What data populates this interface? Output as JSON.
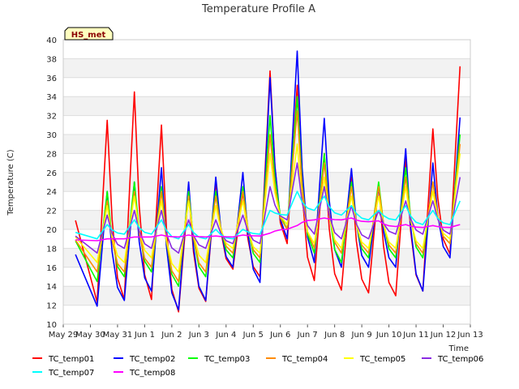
{
  "chart_data": {
    "type": "line",
    "title": "Temperature Profile A",
    "xlabel": "Time",
    "ylabel": "Temperature (C)",
    "site_badge": "HS_met",
    "ylim": [
      10,
      40
    ],
    "yticks": [
      10,
      12,
      14,
      16,
      18,
      20,
      22,
      24,
      26,
      28,
      30,
      32,
      34,
      36,
      38,
      40
    ],
    "xlim": [
      "2017-05-29",
      "2017-06-13"
    ],
    "xticks": [
      "May 29",
      "May 30",
      "May 31",
      "Jun 1",
      "Jun 2",
      "Jun 3",
      "Jun 4",
      "Jun 5",
      "Jun 6",
      "Jun 7",
      "Jun 8",
      "Jun 9",
      "Jun 10",
      "Jun 11",
      "Jun 12",
      "Jun 13"
    ],
    "grid": true,
    "legend_position": "bottom",
    "x": [
      "2017-05-30",
      "2017-05-31",
      "2017-06-01",
      "2017-06-02",
      "2017-06-03",
      "2017-06-04",
      "2017-06-05",
      "2017-06-06",
      "2017-06-07",
      "2017-06-08",
      "2017-06-09",
      "2017-06-10",
      "2017-06-11",
      "2017-06-12"
    ],
    "series": [
      {
        "name": "TC_temp01",
        "color": "#ff0000",
        "min": [
          12.3,
          12.6,
          12.6,
          11.3,
          12.4,
          15.8,
          15.0,
          18.5,
          14.6,
          13.6,
          13.3,
          13.0,
          13.5,
          17.4
        ],
        "max": [
          31.5,
          34.5,
          31.0,
          24.0,
          25.0,
          24.0,
          36.7,
          35.2,
          28.0,
          25.5,
          24.7,
          27.5,
          30.6,
          37.2
        ]
      },
      {
        "name": "TC_temp02",
        "color": "#0000ff",
        "min": [
          11.9,
          12.5,
          13.5,
          11.5,
          12.5,
          16.0,
          14.4,
          19.0,
          16.5,
          16.0,
          16.0,
          16.0,
          13.5,
          17.0
        ],
        "max": [
          24.0,
          25.0,
          26.5,
          25.0,
          25.5,
          26.0,
          36.0,
          38.8,
          31.7,
          26.4,
          24.5,
          28.5,
          27.0,
          31.8
        ]
      },
      {
        "name": "TC_temp03",
        "color": "#00ff00",
        "min": [
          14.5,
          15.0,
          15.5,
          14.0,
          15.0,
          17.0,
          16.5,
          20.0,
          17.5,
          16.5,
          17.0,
          17.0,
          17.0,
          18.5
        ],
        "max": [
          24.0,
          25.0,
          24.5,
          24.0,
          24.0,
          24.5,
          32.0,
          34.0,
          28.0,
          25.0,
          25.0,
          26.5,
          25.0,
          30.0
        ]
      },
      {
        "name": "TC_temp04",
        "color": "#ff8c00",
        "min": [
          15.5,
          15.5,
          16.0,
          14.5,
          15.5,
          17.5,
          17.0,
          20.0,
          18.0,
          17.5,
          17.5,
          17.5,
          17.5,
          18.5
        ],
        "max": [
          23.0,
          24.0,
          24.0,
          23.5,
          23.5,
          24.0,
          30.0,
          32.5,
          27.0,
          24.5,
          24.5,
          25.5,
          25.0,
          29.0
        ]
      },
      {
        "name": "TC_temp05",
        "color": "#ffff00",
        "min": [
          16.5,
          16.5,
          17.0,
          15.5,
          16.5,
          18.0,
          17.5,
          20.5,
          18.5,
          18.0,
          18.0,
          18.0,
          18.0,
          19.0
        ],
        "max": [
          22.5,
          23.5,
          23.0,
          23.0,
          22.5,
          23.0,
          28.0,
          29.0,
          25.5,
          23.5,
          23.5,
          24.5,
          24.0,
          28.0
        ]
      },
      {
        "name": "TC_temp06",
        "color": "#8a2be2",
        "min": [
          17.5,
          18.0,
          18.0,
          17.5,
          18.0,
          18.5,
          18.5,
          21.0,
          19.5,
          19.0,
          19.0,
          19.5,
          19.5,
          19.5
        ],
        "max": [
          21.5,
          22.0,
          22.0,
          21.0,
          21.0,
          21.5,
          24.5,
          27.0,
          24.5,
          22.5,
          22.0,
          23.0,
          23.0,
          25.5
        ]
      },
      {
        "name": "TC_temp07",
        "color": "#00ffff",
        "min": [
          19.0,
          19.5,
          19.5,
          19.0,
          19.0,
          19.0,
          19.5,
          21.5,
          22.0,
          21.5,
          21.0,
          21.0,
          20.5,
          20.5
        ],
        "max": [
          20.5,
          21.0,
          21.0,
          20.5,
          20.0,
          20.0,
          22.0,
          24.0,
          23.5,
          22.5,
          22.0,
          22.5,
          22.0,
          23.0
        ]
      },
      {
        "name": "TC_temp08",
        "color": "#ff00ff",
        "min": [
          18.8,
          19.0,
          19.2,
          19.2,
          19.2,
          19.2,
          19.3,
          20.0,
          21.0,
          21.0,
          20.8,
          20.3,
          20.2,
          20.2
        ],
        "max": [
          19.0,
          19.2,
          19.4,
          19.4,
          19.3,
          19.4,
          19.6,
          20.4,
          21.2,
          21.2,
          20.9,
          20.5,
          20.4,
          20.5
        ]
      }
    ]
  }
}
